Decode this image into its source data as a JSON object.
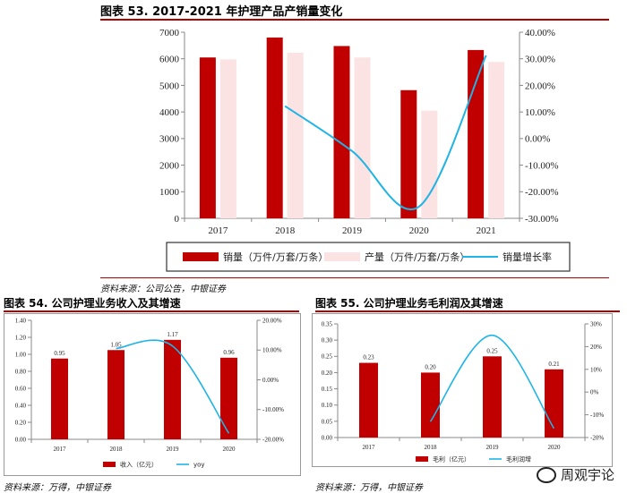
{
  "charts": {
    "c53": {
      "title": "图表 53. 2017-2021 年护理产品产销量变化",
      "source": "资料来源：公司公告，中银证券",
      "left_ticks": [
        "0",
        "1000",
        "2000",
        "3000",
        "4000",
        "5000",
        "6000",
        "7000"
      ],
      "right_ticks": [
        "-30.00%",
        "-20.00%",
        "-10.00%",
        "0.00%",
        "10.00%",
        "20.00%",
        "30.00%",
        "40.00%"
      ],
      "legend": [
        "销量（万件/万套/万条）",
        "产量（万件/万套/万条）",
        "销量增长率"
      ],
      "colors": {
        "bar1": "#c00000",
        "bar2": "#fbe3e3",
        "line": "#1eb4e6"
      }
    },
    "c54": {
      "title": "图表 54. 公司护理业务收入及其增速",
      "source": "资料来源：万得，中银证券",
      "left_ticks": [
        "0.00",
        "0.20",
        "0.40",
        "0.60",
        "0.80",
        "1.00",
        "1.20",
        "1.40"
      ],
      "right_ticks": [
        "-20.00%",
        "-10.00%",
        "0.00%",
        "10.00%",
        "20.00%"
      ],
      "legend": [
        "收入（亿元）",
        "yoy"
      ],
      "colors": {
        "bar": "#c00000",
        "line": "#1eb4e6"
      }
    },
    "c55": {
      "title": "图表 55. 公司护理业务毛利润及其增速",
      "source": "资料来源：万得，中银证券",
      "left_ticks": [
        "0.00",
        "0.05",
        "0.10",
        "0.15",
        "0.20",
        "0.25",
        "0.30",
        "0.35"
      ],
      "right_ticks": [
        "-20%",
        "-10%",
        "0%",
        "10%",
        "20%",
        "30%"
      ],
      "legend": [
        "毛利（亿元）",
        "毛利润增"
      ],
      "colors": {
        "bar": "#c00000",
        "line": "#1eb4e6"
      }
    }
  },
  "watermark": "周观宇论",
  "chart_data": [
    {
      "type": "bar",
      "title": "图表 53. 2017-2021 年护理产品产销量变化",
      "categories": [
        "2017",
        "2018",
        "2019",
        "2020",
        "2021"
      ],
      "series": [
        {
          "name": "销量（万件/万套/万条）",
          "axis": "left",
          "type": "bar",
          "values": [
            6050,
            6800,
            6480,
            4820,
            6330
          ]
        },
        {
          "name": "产量（万件/万套/万条）",
          "axis": "left",
          "type": "bar",
          "values": [
            5980,
            6230,
            6050,
            4050,
            5880
          ]
        },
        {
          "name": "销量增长率",
          "axis": "right",
          "type": "line",
          "unit": "%",
          "values": [
            null,
            12.2,
            -4.7,
            -25.6,
            31.3
          ]
        }
      ],
      "ylim": [
        0,
        7000
      ],
      "y2lim": [
        -30,
        40
      ],
      "legend": "bottom"
    },
    {
      "type": "bar",
      "title": "图表 54. 公司护理业务收入及其增速",
      "categories": [
        "2017",
        "2018",
        "2019",
        "2020"
      ],
      "series": [
        {
          "name": "收入（亿元）",
          "axis": "left",
          "type": "bar",
          "values": [
            0.95,
            1.05,
            1.17,
            0.96
          ],
          "labels": [
            "0.95",
            "1.05",
            "1.17",
            "0.96"
          ]
        },
        {
          "name": "yoy",
          "axis": "right",
          "type": "line",
          "unit": "%",
          "values": [
            null,
            10.5,
            11.4,
            -18.0
          ]
        }
      ],
      "ylim": [
        0,
        1.4
      ],
      "y2lim": [
        -20,
        20
      ],
      "legend": "bottom"
    },
    {
      "type": "bar",
      "title": "图表 55. 公司护理业务毛利润及其增速",
      "categories": [
        "2017",
        "2018",
        "2019",
        "2020"
      ],
      "series": [
        {
          "name": "毛利（亿元）",
          "axis": "left",
          "type": "bar",
          "values": [
            0.23,
            0.2,
            0.25,
            0.21
          ],
          "labels": [
            "0.23",
            "0.20",
            "0.25",
            "0.21"
          ]
        },
        {
          "name": "毛利润增",
          "axis": "right",
          "type": "line",
          "unit": "%",
          "values": [
            null,
            -13.0,
            25.0,
            -16.0
          ]
        }
      ],
      "ylim": [
        0,
        0.35
      ],
      "y2lim": [
        -20,
        30
      ],
      "legend": "bottom"
    }
  ]
}
